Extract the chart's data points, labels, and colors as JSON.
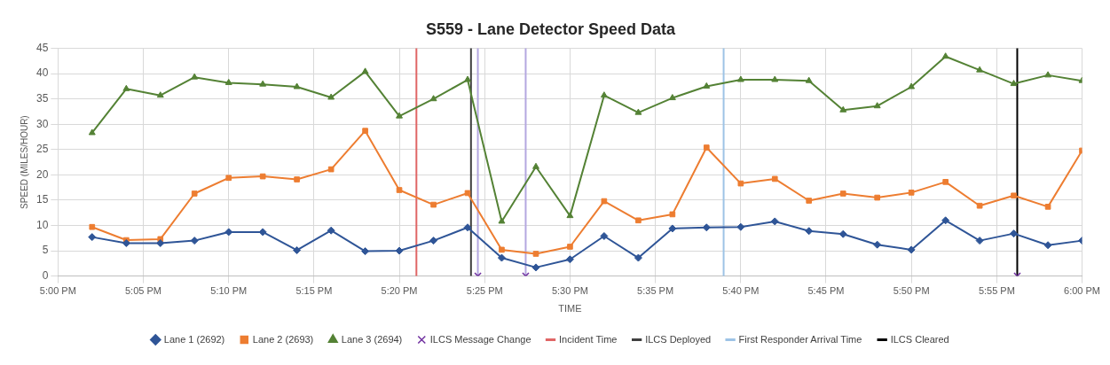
{
  "chart_data": {
    "type": "line",
    "title": "S559 - Lane Detector Speed Data",
    "xlabel": "TIME",
    "ylabel": "SPEED (MILES/HOUR)",
    "x": [
      17.0333,
      17.0667,
      17.1,
      17.1333,
      17.1667,
      17.2,
      17.2333,
      17.2667,
      17.3,
      17.3333,
      17.3667,
      17.4,
      17.4333,
      17.4667,
      17.5,
      17.5333,
      17.5667,
      17.6,
      17.6333,
      17.6667,
      17.7,
      17.7333,
      17.7667,
      17.8,
      17.8333,
      17.8667,
      17.9,
      17.9333,
      17.9667,
      18
    ],
    "series": [
      {
        "name": "Lane 1 (2692)",
        "color": "#2f5597",
        "marker": "diamond",
        "values": [
          7.7,
          6.5,
          6.5,
          7.0,
          8.7,
          8.7,
          5.1,
          9.0,
          4.9,
          5.0,
          7.0,
          9.6,
          3.6,
          1.7,
          3.3,
          7.9,
          3.6,
          9.4,
          9.6,
          9.7,
          10.8,
          8.9,
          8.3,
          6.2,
          5.2,
          11.0,
          7.0,
          8.4,
          6.1,
          7.0
        ]
      },
      {
        "name": "Lane 2 (2693)",
        "color": "#ed7d31",
        "marker": "square",
        "values": [
          9.7,
          7.1,
          7.3,
          16.3,
          19.4,
          19.7,
          19.1,
          21.1,
          28.7,
          17.0,
          14.1,
          16.4,
          5.2,
          4.4,
          5.8,
          14.8,
          11.0,
          12.2,
          25.4,
          18.3,
          19.2,
          14.9,
          16.3,
          15.5,
          16.5,
          18.6,
          13.9,
          15.9,
          13.7,
          24.8
        ]
      },
      {
        "name": "Lane 3 (2694)",
        "color": "#548235",
        "marker": "triangle",
        "values": [
          28.3,
          37.0,
          35.7,
          39.3,
          38.2,
          37.9,
          37.4,
          35.3,
          40.4,
          31.6,
          35.0,
          38.8,
          10.8,
          21.6,
          11.9,
          35.7,
          32.3,
          35.2,
          37.5,
          38.8,
          38.8,
          38.6,
          32.8,
          33.6,
          37.4,
          43.4,
          40.7,
          38.0,
          39.7,
          38.6
        ]
      },
      {
        "name": "ILCS Message Change",
        "type": "scatter",
        "color": "#7030a0",
        "marker": "cross",
        "x": [
          17.41,
          17.4567,
          17.9367
        ],
        "values": [
          0,
          0,
          0
        ]
      }
    ],
    "ref_lines": [
      {
        "axis": "x",
        "value": 17.35,
        "label": "Incident Time",
        "color": "#e06666"
      },
      {
        "axis": "x",
        "value": 17.4033,
        "label": "ILCS Deployed",
        "color": "#404040"
      },
      {
        "axis": "x",
        "value": 17.41,
        "color": "#b4a7e0"
      },
      {
        "axis": "x",
        "value": 17.4567,
        "color": "#b4a7e0"
      },
      {
        "axis": "x",
        "value": 17.65,
        "label": "First Responder Arrival Time",
        "color": "#9dc3e6"
      },
      {
        "axis": "x",
        "value": 17.9367,
        "label": "ILCS Cleared",
        "color": "#000000"
      }
    ],
    "xlim": [
      17,
      18
    ],
    "xticks": [
      {
        "value": 17,
        "label": "5:00 PM"
      },
      {
        "value": 17.0833,
        "label": "5:05 PM"
      },
      {
        "value": 17.1667,
        "label": "5:10 PM"
      },
      {
        "value": 17.25,
        "label": "5:15 PM"
      },
      {
        "value": 17.3333,
        "label": "5:20 PM"
      },
      {
        "value": 17.4167,
        "label": "5:25 PM"
      },
      {
        "value": 17.5,
        "label": "5:30 PM"
      },
      {
        "value": 17.5833,
        "label": "5:35 PM"
      },
      {
        "value": 17.6667,
        "label": "5:40 PM"
      },
      {
        "value": 17.75,
        "label": "5:45 PM"
      },
      {
        "value": 17.8333,
        "label": "5:50 PM"
      },
      {
        "value": 17.9167,
        "label": "5:55 PM"
      },
      {
        "value": 18,
        "label": "6:00 PM"
      }
    ],
    "ylim": [
      0,
      45
    ],
    "yticks": [
      0,
      5,
      10,
      15,
      20,
      25,
      30,
      35,
      40,
      45
    ],
    "grid": true,
    "legend": "bottom"
  }
}
